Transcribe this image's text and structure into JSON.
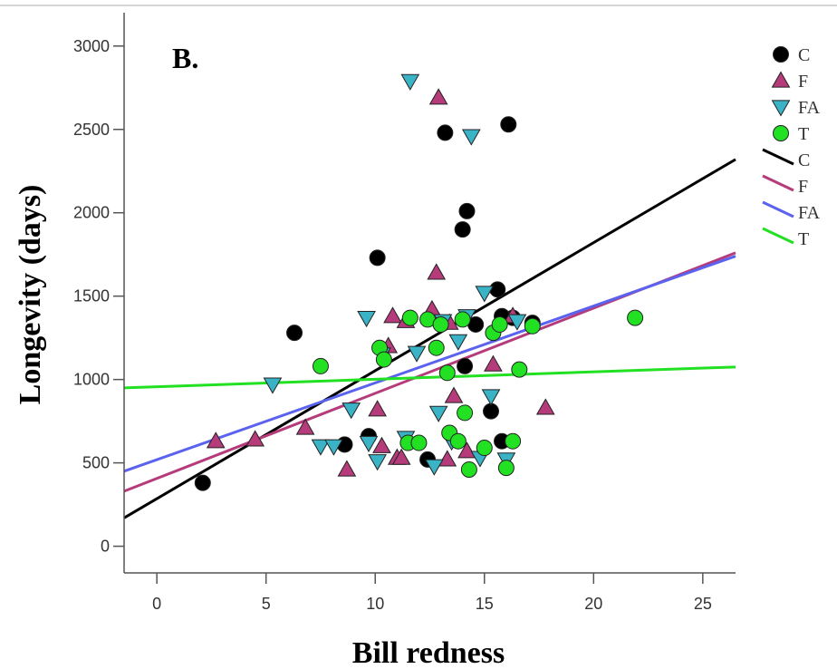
{
  "chart_data": {
    "type": "scatter",
    "panel_label": "B.",
    "xlabel": "Bill redness",
    "ylabel": "Longevity (days)",
    "xlim": [
      -1.5,
      26.5
    ],
    "ylim": [
      -160,
      3200
    ],
    "x_ticks": [
      0,
      5,
      10,
      15,
      20,
      25
    ],
    "y_ticks": [
      0,
      500,
      1000,
      1500,
      2000,
      2500,
      3000
    ],
    "grid": false,
    "legend_position": "right",
    "series": [
      {
        "name": "C",
        "marker": "circle",
        "color": "#000000",
        "points": [
          [
            2.1,
            380
          ],
          [
            6.3,
            1280
          ],
          [
            8.6,
            610
          ],
          [
            9.7,
            660
          ],
          [
            10.1,
            1730
          ],
          [
            12.4,
            520
          ],
          [
            13.2,
            2480
          ],
          [
            14.0,
            1900
          ],
          [
            14.1,
            1080
          ],
          [
            14.2,
            2010
          ],
          [
            14.6,
            1330
          ],
          [
            15.3,
            810
          ],
          [
            15.6,
            1540
          ],
          [
            15.8,
            630
          ],
          [
            16.1,
            2530
          ],
          [
            16.3,
            1370
          ],
          [
            17.2,
            1340
          ],
          [
            15.8,
            1380
          ]
        ]
      },
      {
        "name": "F",
        "marker": "triangle-up",
        "color": "#b53b7a",
        "points": [
          [
            2.7,
            630
          ],
          [
            4.5,
            640
          ],
          [
            6.8,
            710
          ],
          [
            8.7,
            460
          ],
          [
            10.1,
            820
          ],
          [
            10.3,
            600
          ],
          [
            10.6,
            1200
          ],
          [
            10.8,
            1380
          ],
          [
            11.0,
            530
          ],
          [
            11.2,
            530
          ],
          [
            11.4,
            1350
          ],
          [
            12.6,
            1420
          ],
          [
            12.8,
            1640
          ],
          [
            12.9,
            2690
          ],
          [
            13.3,
            520
          ],
          [
            13.4,
            1340
          ],
          [
            13.6,
            900
          ],
          [
            14.2,
            570
          ],
          [
            15.4,
            1090
          ],
          [
            16.3,
            1380
          ],
          [
            17.8,
            830
          ]
        ]
      },
      {
        "name": "FA",
        "marker": "triangle-down",
        "color": "#3bb3c6",
        "points": [
          [
            5.3,
            970
          ],
          [
            7.5,
            600
          ],
          [
            8.1,
            600
          ],
          [
            8.9,
            820
          ],
          [
            9.6,
            1370
          ],
          [
            9.7,
            620
          ],
          [
            10.1,
            510
          ],
          [
            10.3,
            1150
          ],
          [
            11.4,
            650
          ],
          [
            11.6,
            2790
          ],
          [
            11.9,
            1160
          ],
          [
            12.7,
            480
          ],
          [
            12.9,
            800
          ],
          [
            13.1,
            1350
          ],
          [
            13.5,
            630
          ],
          [
            13.8,
            1230
          ],
          [
            14.2,
            1380
          ],
          [
            14.4,
            2460
          ],
          [
            14.8,
            530
          ],
          [
            15.0,
            1520
          ],
          [
            15.3,
            900
          ],
          [
            16.0,
            520
          ],
          [
            16.5,
            1350
          ]
        ]
      },
      {
        "name": "T",
        "marker": "circle",
        "color": "#22e022",
        "points": [
          [
            7.5,
            1080
          ],
          [
            10.2,
            1190
          ],
          [
            10.4,
            1120
          ],
          [
            11.5,
            620
          ],
          [
            11.6,
            1370
          ],
          [
            12.0,
            620
          ],
          [
            12.4,
            1360
          ],
          [
            12.8,
            1190
          ],
          [
            13.0,
            1330
          ],
          [
            13.3,
            1040
          ],
          [
            13.4,
            680
          ],
          [
            13.8,
            630
          ],
          [
            14.0,
            1360
          ],
          [
            14.1,
            800
          ],
          [
            14.3,
            460
          ],
          [
            15.0,
            590
          ],
          [
            15.4,
            1280
          ],
          [
            15.7,
            1330
          ],
          [
            16.0,
            470
          ],
          [
            16.3,
            630
          ],
          [
            16.6,
            1060
          ],
          [
            17.2,
            1320
          ],
          [
            21.9,
            1370
          ]
        ]
      }
    ],
    "fit_lines": [
      {
        "name": "C",
        "color": "#000000",
        "x": [
          -1.5,
          26.5
        ],
        "y": [
          170,
          2320
        ]
      },
      {
        "name": "F",
        "color": "#b53b7a",
        "x": [
          -1.5,
          26.5
        ],
        "y": [
          330,
          1760
        ]
      },
      {
        "name": "FA",
        "color": "#5a62ee",
        "x": [
          -1.5,
          26.5
        ],
        "y": [
          450,
          1740
        ]
      },
      {
        "name": "T",
        "color": "#22e022",
        "x": [
          -1.5,
          26.5
        ],
        "y": [
          950,
          1075
        ]
      }
    ]
  }
}
